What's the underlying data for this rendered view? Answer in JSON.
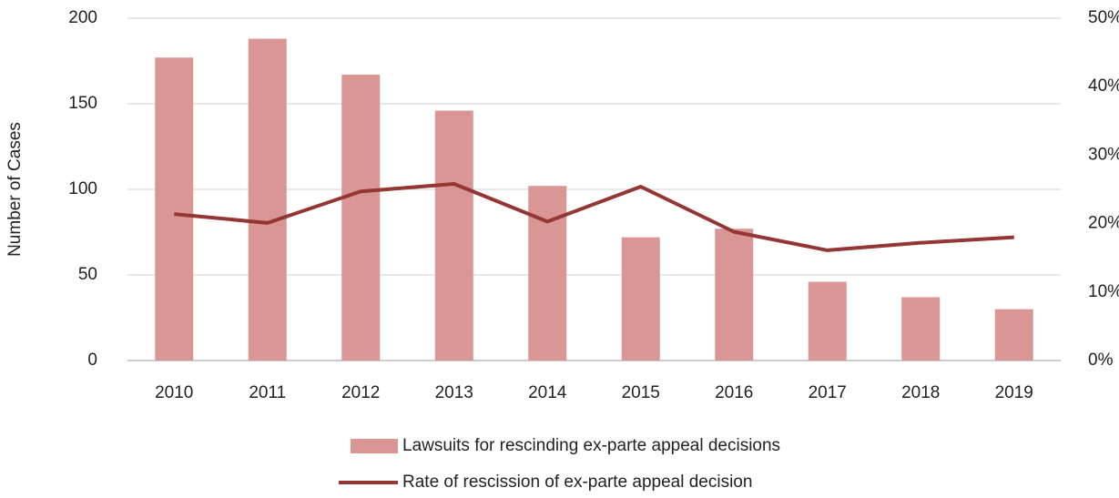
{
  "chart_data": {
    "type": "bar",
    "y_axis_label": "Number of Cases",
    "categories": [
      "2010",
      "2011",
      "2012",
      "2013",
      "2014",
      "2015",
      "2016",
      "2017",
      "2018",
      "2019"
    ],
    "series": [
      {
        "name": "Lawsuits for rescinding ex-parte appeal decisions",
        "type": "bar",
        "color": "#d99694",
        "values": [
          177,
          188,
          167,
          146,
          102,
          72,
          77,
          46,
          37,
          30
        ]
      },
      {
        "name": "Rate of rescission of ex-parte appeal decision",
        "type": "line",
        "axis": "y2",
        "color": "#943634",
        "values": [
          21.4,
          20.1,
          24.7,
          25.8,
          20.3,
          25.4,
          18.8,
          16.1,
          17.2,
          18.0
        ]
      }
    ],
    "ylim": [
      0,
      200
    ],
    "yticks": [
      0,
      50,
      100,
      150,
      200
    ],
    "y2lim": [
      0,
      50
    ],
    "y2ticks": [
      {
        "value": 0,
        "label": "0%"
      },
      {
        "value": 10,
        "label": "10%"
      },
      {
        "value": 20,
        "label": "20%"
      },
      {
        "value": 30,
        "label": "30%"
      },
      {
        "value": 40,
        "label": "40%"
      },
      {
        "value": 50,
        "label": "50%"
      }
    ],
    "grid": true
  }
}
